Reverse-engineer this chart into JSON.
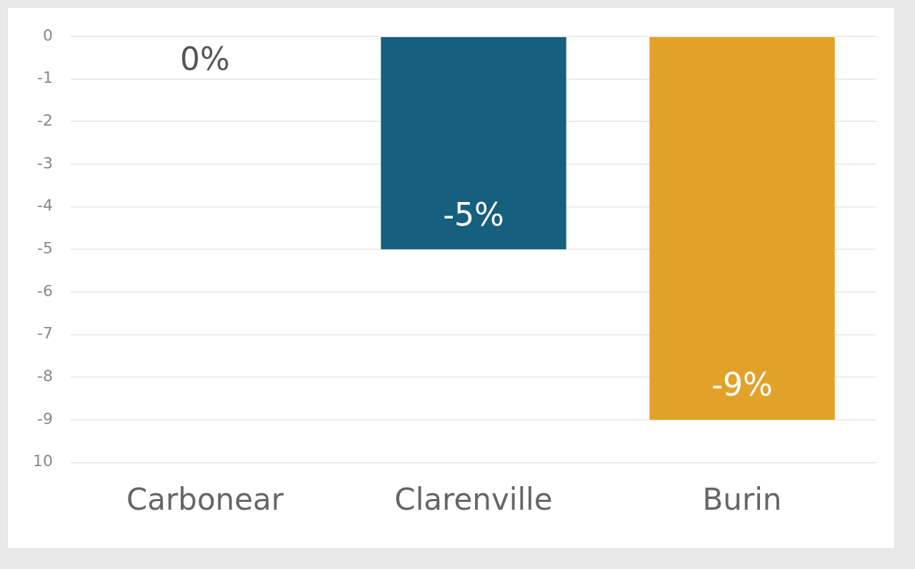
{
  "chart_data": {
    "type": "bar",
    "categories": [
      "Carbonear",
      "Clarenville",
      "Burin"
    ],
    "values": [
      0,
      -5,
      -9
    ],
    "colors": [
      "#165f7d",
      "#165f7d",
      "#e2a22a"
    ],
    "value_labels": [
      "0%",
      "-5%",
      "-9%"
    ],
    "ylim": [
      -10,
      0
    ],
    "yticks": [
      0,
      -1,
      -2,
      -3,
      -4,
      -5,
      -6,
      -7,
      -8,
      -9,
      {
        "value": -10,
        "label": "10"
      }
    ],
    "grid": "y"
  }
}
